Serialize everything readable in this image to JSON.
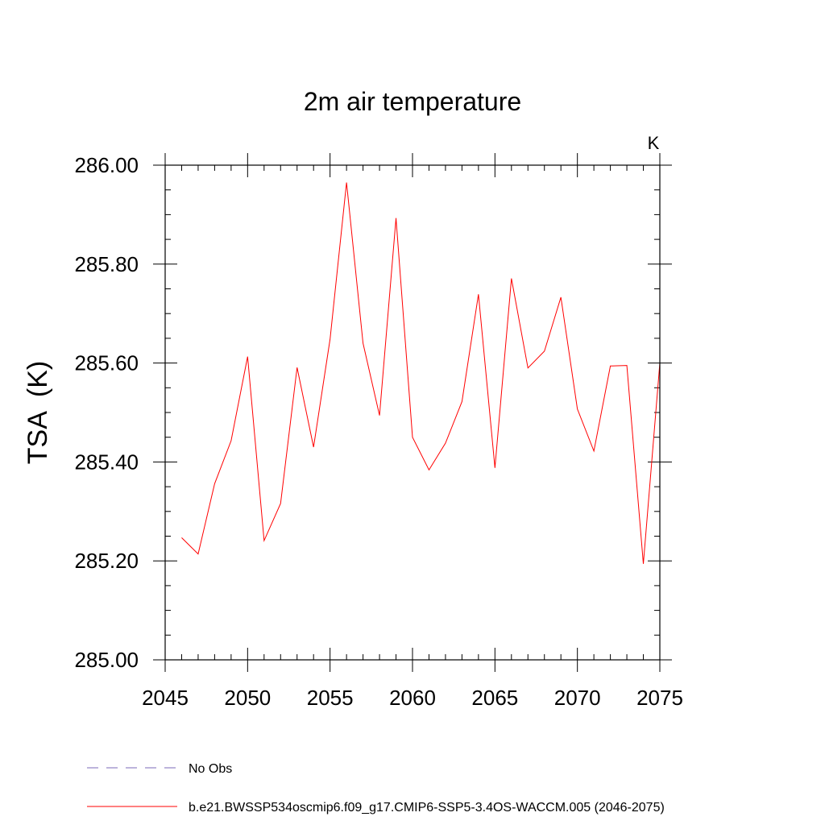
{
  "chart_data": {
    "type": "line",
    "title": "2m air temperature",
    "units_label": "K",
    "ylabel": "TSA  (K)",
    "xlabel": "",
    "xlim": [
      2045,
      2075
    ],
    "ylim": [
      285.0,
      286.0
    ],
    "x_ticks": [
      2045,
      2050,
      2055,
      2060,
      2065,
      2070,
      2075
    ],
    "x_tick_labels": [
      "2045",
      "2050",
      "2055",
      "2060",
      "2065",
      "2070",
      "2075"
    ],
    "y_ticks": [
      285.0,
      285.2,
      285.4,
      285.6,
      285.8,
      286.0
    ],
    "y_tick_labels": [
      "285.00",
      "285.20",
      "285.40",
      "285.60",
      "285.80",
      "286.00"
    ],
    "grid": false,
    "legend_position": "bottom-left",
    "series": [
      {
        "name": "No Obs",
        "color": "#7b68b8",
        "style": "dashed",
        "x": [],
        "values": []
      },
      {
        "name": "b.e21.BWSSP534oscmip6.f09_g17.CMIP6-SSP5-3.4OS-WACCM.005 (2046-2075)",
        "color": "#ff0000",
        "style": "solid",
        "x": [
          2046,
          2047,
          2048,
          2049,
          2050,
          2051,
          2052,
          2053,
          2054,
          2055,
          2056,
          2057,
          2058,
          2059,
          2060,
          2061,
          2062,
          2063,
          2064,
          2065,
          2066,
          2067,
          2068,
          2069,
          2070,
          2071,
          2072,
          2073,
          2074,
          2075
        ],
        "values": [
          285.247,
          285.214,
          285.356,
          285.443,
          285.613,
          285.241,
          285.316,
          285.591,
          285.43,
          285.648,
          285.965,
          285.64,
          285.494,
          285.893,
          285.45,
          285.384,
          285.438,
          285.522,
          285.739,
          285.388,
          285.771,
          285.59,
          285.624,
          285.733,
          285.507,
          285.422,
          285.594,
          285.595,
          285.194,
          285.6
        ]
      }
    ]
  }
}
